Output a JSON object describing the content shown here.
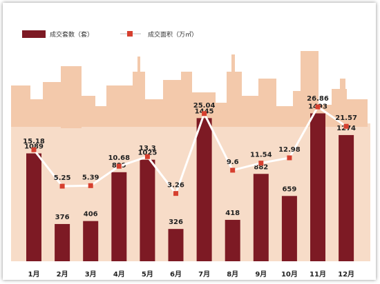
{
  "chart_data": {
    "type": "bar",
    "categories": [
      "1月",
      "2月",
      "3月",
      "4月",
      "5月",
      "6月",
      "7月",
      "8月",
      "9月",
      "10月",
      "11月",
      "12月"
    ],
    "series": [
      {
        "name": "成交套数（套）",
        "type": "bar",
        "values": [
          1089,
          376,
          406,
          899,
          1025,
          326,
          1445,
          418,
          882,
          659,
          1493,
          1274
        ],
        "labels": [
          "1089",
          "376",
          "406",
          "899",
          "1025",
          "326",
          "1445",
          "418",
          "882",
          "659",
          "1493",
          "1274"
        ]
      },
      {
        "name": "成交面积（万㎡）",
        "type": "line",
        "values": [
          15.18,
          5.25,
          5.39,
          10.68,
          13.3,
          3.26,
          25.04,
          9.6,
          11.54,
          12.98,
          26.86,
          21.57
        ],
        "labels": [
          "15.18",
          "5.25",
          "5.39",
          "10.68",
          "13.3",
          "3.26",
          "25.04",
          "9.6",
          "11.54",
          "12.98",
          "26.86",
          "21.57"
        ]
      }
    ],
    "legend_position": "top-left",
    "grid": false
  },
  "colors": {
    "bar": "#7d1a24",
    "line": "#ffffff",
    "marker": "#d6402f",
    "skyline": "#f3c9ab",
    "skyline_base": "#f7dcc8"
  }
}
